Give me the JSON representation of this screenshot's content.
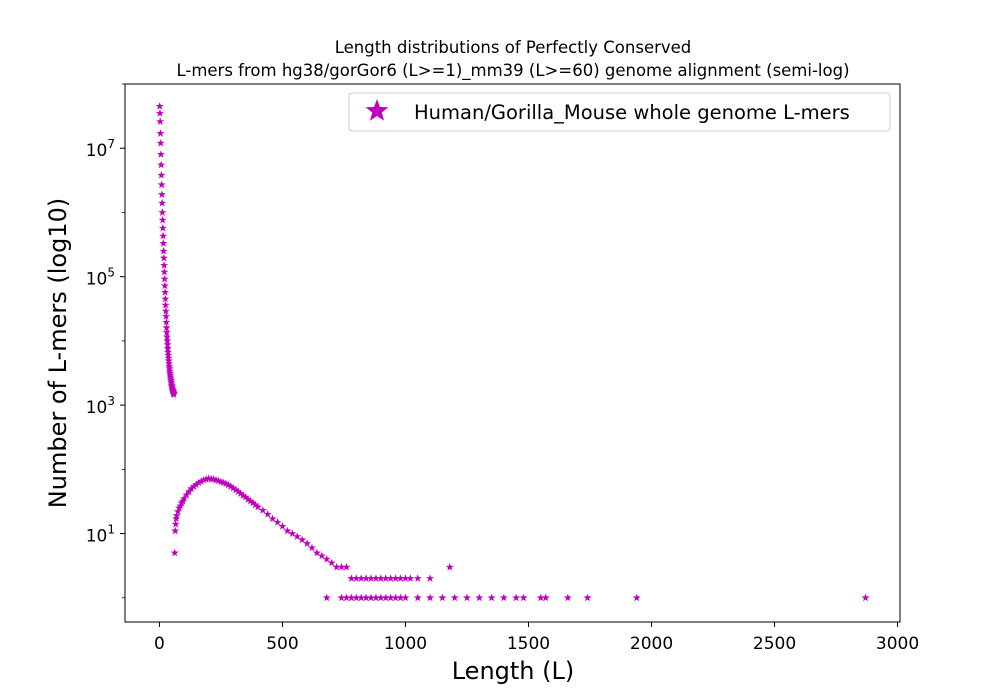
{
  "chart_data": {
    "type": "scatter",
    "title": "Length distributions of Perfectly Conserved\nL-mers from hg38/gorGor6 (L>=1)_mm39 (L>=60) genome alignment (semi-log)",
    "xlabel": "Length (L)",
    "ylabel": "Number of L-mers (log10)",
    "xscale": "linear",
    "yscale": "log",
    "xlim": [
      -140,
      3010
    ],
    "ylim": [
      0.42,
      100000000
    ],
    "xticks": [
      0,
      500,
      1000,
      1500,
      2000,
      2500,
      3000
    ],
    "xtick_labels": [
      "0",
      "500",
      "1000",
      "1500",
      "2000",
      "2500",
      "3000"
    ],
    "yticks": [
      10,
      1000,
      100000,
      10000000
    ],
    "ytick_labels": [
      {
        "base": "10",
        "exp": "1"
      },
      {
        "base": "10",
        "exp": "3"
      },
      {
        "base": "10",
        "exp": "5"
      },
      {
        "base": "10",
        "exp": "7"
      }
    ],
    "grid": false,
    "legend_position": "top-right",
    "marker": "star",
    "color": "#BF00BF",
    "series": [
      {
        "name": "Human/Gorilla_Mouse whole genome L-mers",
        "points": [
          [
            1,
            45000000
          ],
          [
            2,
            35000000
          ],
          [
            3,
            26000000
          ],
          [
            4,
            17000000
          ],
          [
            5,
            12000000
          ],
          [
            6,
            8000000
          ],
          [
            7,
            5500000
          ],
          [
            8,
            3800000
          ],
          [
            9,
            2700000
          ],
          [
            10,
            1900000
          ],
          [
            11,
            1400000
          ],
          [
            12,
            1000000
          ],
          [
            13,
            760000
          ],
          [
            14,
            570000
          ],
          [
            15,
            430000
          ],
          [
            16,
            330000
          ],
          [
            17,
            250000
          ],
          [
            18,
            195000
          ],
          [
            19,
            150000
          ],
          [
            20,
            118000
          ],
          [
            21,
            92000
          ],
          [
            22,
            72000
          ],
          [
            23,
            57000
          ],
          [
            24,
            45000
          ],
          [
            25,
            36000
          ],
          [
            26,
            29000
          ],
          [
            27,
            24000
          ],
          [
            28,
            19500
          ],
          [
            29,
            16000
          ],
          [
            30,
            13500
          ],
          [
            31,
            11500
          ],
          [
            32,
            10000
          ],
          [
            33,
            8700
          ],
          [
            34,
            7600
          ],
          [
            35,
            6700
          ],
          [
            36,
            6000
          ],
          [
            37,
            5400
          ],
          [
            38,
            4900
          ],
          [
            39,
            4400
          ],
          [
            40,
            4000
          ],
          [
            41,
            3700
          ],
          [
            42,
            3400
          ],
          [
            43,
            3150
          ],
          [
            44,
            2950
          ],
          [
            45,
            2750
          ],
          [
            46,
            2580
          ],
          [
            47,
            2420
          ],
          [
            48,
            2280
          ],
          [
            49,
            2150
          ],
          [
            50,
            2040
          ],
          [
            51,
            1940
          ],
          [
            52,
            1850
          ],
          [
            53,
            1770
          ],
          [
            54,
            1700
          ],
          [
            55,
            1640
          ],
          [
            56,
            1590
          ],
          [
            57,
            1540
          ],
          [
            58,
            1500
          ],
          [
            59,
            1460
          ],
          [
            62,
            5
          ],
          [
            64,
            11
          ],
          [
            66,
            14
          ],
          [
            68,
            17
          ],
          [
            70,
            19
          ],
          [
            75,
            22
          ],
          [
            80,
            25
          ],
          [
            85,
            27
          ],
          [
            90,
            30
          ],
          [
            95,
            32
          ],
          [
            100,
            35
          ],
          [
            110,
            40
          ],
          [
            120,
            45
          ],
          [
            130,
            50
          ],
          [
            140,
            54
          ],
          [
            150,
            58
          ],
          [
            160,
            62
          ],
          [
            170,
            65
          ],
          [
            180,
            68
          ],
          [
            190,
            70
          ],
          [
            200,
            72
          ],
          [
            210,
            71
          ],
          [
            220,
            70
          ],
          [
            230,
            68
          ],
          [
            240,
            66
          ],
          [
            250,
            64
          ],
          [
            260,
            62
          ],
          [
            270,
            60
          ],
          [
            280,
            57
          ],
          [
            290,
            54
          ],
          [
            300,
            51
          ],
          [
            310,
            48
          ],
          [
            320,
            45
          ],
          [
            330,
            42
          ],
          [
            340,
            39
          ],
          [
            350,
            37
          ],
          [
            360,
            34
          ],
          [
            370,
            32
          ],
          [
            380,
            30
          ],
          [
            390,
            28
          ],
          [
            400,
            26
          ],
          [
            420,
            23
          ],
          [
            440,
            20
          ],
          [
            460,
            17
          ],
          [
            480,
            15
          ],
          [
            500,
            13
          ],
          [
            520,
            11
          ],
          [
            540,
            10
          ],
          [
            560,
            9
          ],
          [
            580,
            8
          ],
          [
            600,
            7
          ],
          [
            620,
            6
          ],
          [
            640,
            5
          ],
          [
            660,
            4.5
          ],
          [
            680,
            4
          ],
          [
            700,
            3.5
          ],
          [
            720,
            3
          ],
          [
            740,
            3
          ],
          [
            760,
            3
          ],
          [
            780,
            2
          ],
          [
            800,
            2
          ],
          [
            820,
            2
          ],
          [
            840,
            2
          ],
          [
            860,
            2
          ],
          [
            880,
            2
          ],
          [
            900,
            2
          ],
          [
            920,
            2
          ],
          [
            940,
            2
          ],
          [
            960,
            2
          ],
          [
            980,
            2
          ],
          [
            1000,
            2
          ],
          [
            1020,
            2
          ],
          [
            1050,
            2
          ],
          [
            1100,
            2
          ],
          [
            1180,
            3
          ],
          [
            680,
            1
          ],
          [
            740,
            1
          ],
          [
            760,
            1
          ],
          [
            780,
            1
          ],
          [
            800,
            1
          ],
          [
            820,
            1
          ],
          [
            840,
            1
          ],
          [
            860,
            1
          ],
          [
            880,
            1
          ],
          [
            900,
            1
          ],
          [
            920,
            1
          ],
          [
            940,
            1
          ],
          [
            960,
            1
          ],
          [
            980,
            1
          ],
          [
            1000,
            1
          ],
          [
            1050,
            1
          ],
          [
            1100,
            1
          ],
          [
            1150,
            1
          ],
          [
            1200,
            1
          ],
          [
            1250,
            1
          ],
          [
            1300,
            1
          ],
          [
            1350,
            1
          ],
          [
            1400,
            1
          ],
          [
            1450,
            1
          ],
          [
            1480,
            1
          ],
          [
            1550,
            1
          ],
          [
            1570,
            1
          ],
          [
            1660,
            1
          ],
          [
            1740,
            1
          ],
          [
            1940,
            1
          ],
          [
            2870,
            1
          ]
        ]
      }
    ]
  }
}
